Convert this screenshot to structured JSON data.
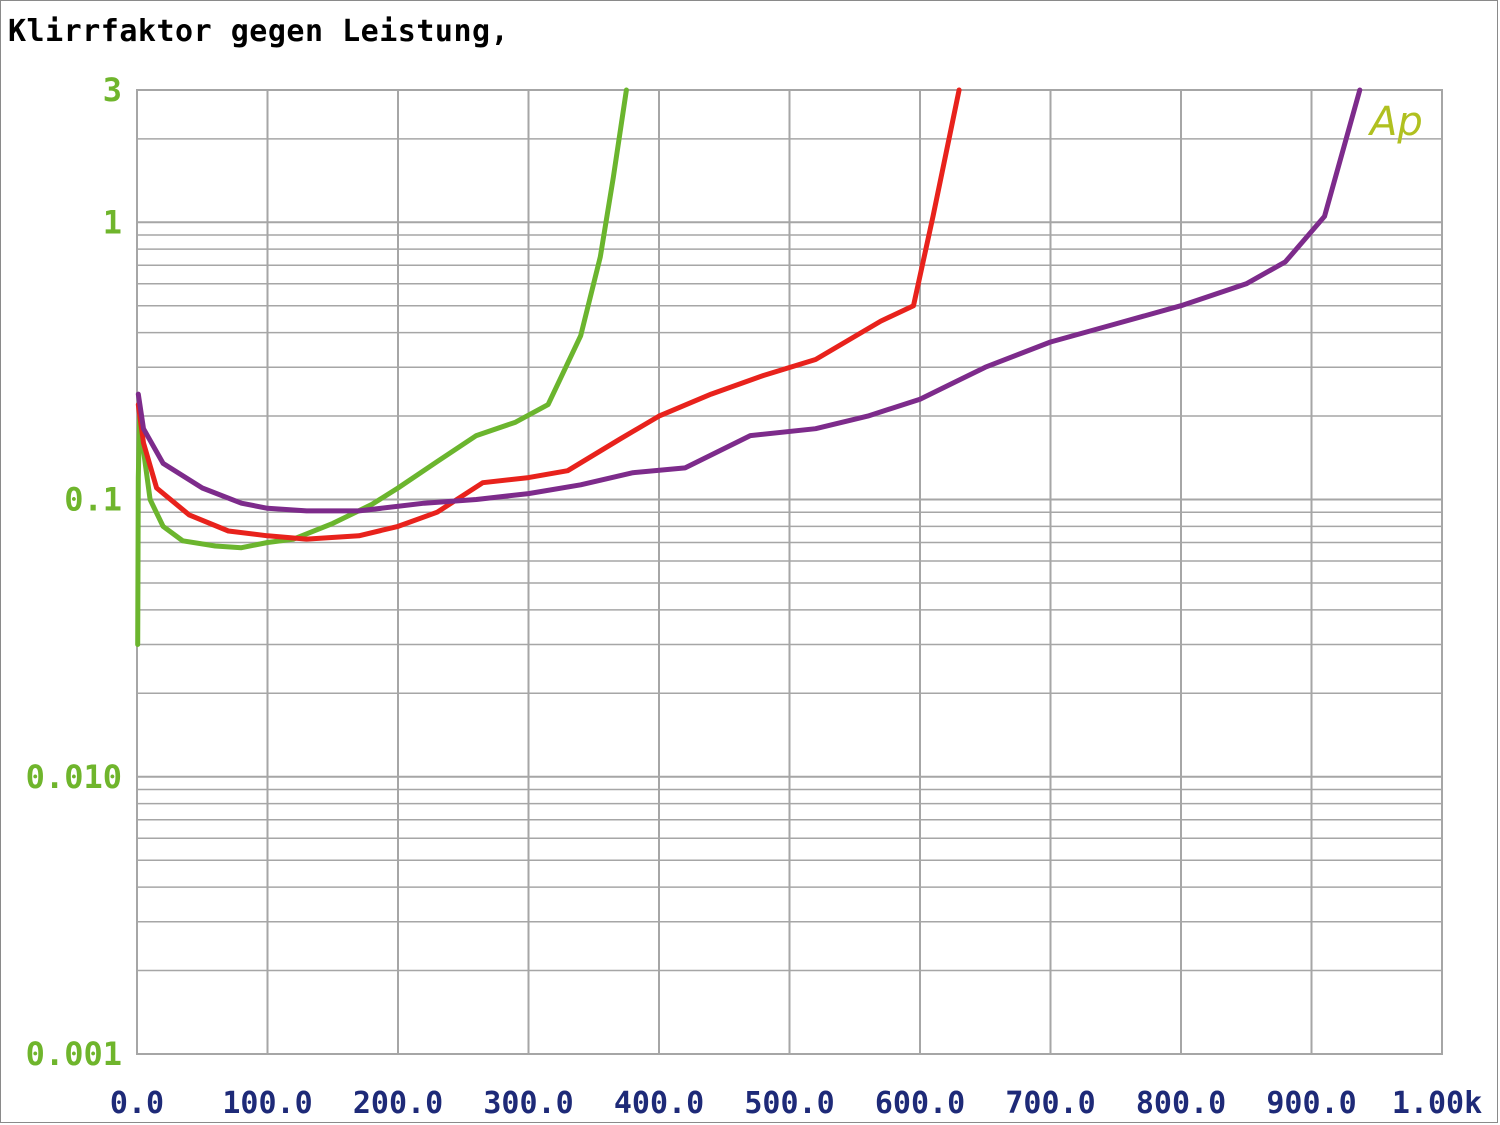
{
  "title": "Klirrfaktor gegen Leistung,",
  "watermark": "Ap",
  "colors": {
    "grid": "#a6a6a6",
    "ytick": "#6fb52c",
    "xtick": "#1e2a78",
    "watermark": "#b0c020"
  },
  "chart_data": {
    "type": "line",
    "title": "Klirrfaktor gegen Leistung,",
    "xlabel": "",
    "ylabel": "",
    "xlim": [
      0,
      1000
    ],
    "ylim": [
      0.001,
      3
    ],
    "yscale": "log",
    "grid": true,
    "xticks": [
      0,
      100,
      200,
      300,
      400,
      500,
      600,
      700,
      800,
      900,
      1000
    ],
    "xtick_labels": [
      "0.0",
      "100.0",
      "200.0",
      "300.0",
      "400.0",
      "500.0",
      "600.0",
      "700.0",
      "800.0",
      "900.0",
      "1.00k"
    ],
    "yticks": [
      0.001,
      0.01,
      0.1,
      1,
      3
    ],
    "ytick_labels": [
      "0.001",
      "0.010",
      "0.1",
      "1",
      "3"
    ],
    "series": [
      {
        "color": "#6bb52e",
        "points": [
          [
            0.5,
            0.03
          ],
          [
            1,
            0.12
          ],
          [
            2,
            0.2
          ],
          [
            5,
            0.15
          ],
          [
            10,
            0.1
          ],
          [
            20,
            0.08
          ],
          [
            35,
            0.071
          ],
          [
            60,
            0.068
          ],
          [
            80,
            0.067
          ],
          [
            100,
            0.07
          ],
          [
            120,
            0.072
          ],
          [
            150,
            0.082
          ],
          [
            180,
            0.096
          ],
          [
            200,
            0.11
          ],
          [
            230,
            0.137
          ],
          [
            260,
            0.17
          ],
          [
            290,
            0.19
          ],
          [
            315,
            0.22
          ],
          [
            340,
            0.39
          ],
          [
            355,
            0.75
          ],
          [
            365,
            1.45
          ],
          [
            375,
            3.0
          ]
        ]
      },
      {
        "color": "#e8221c",
        "points": [
          [
            1,
            0.22
          ],
          [
            5,
            0.16
          ],
          [
            15,
            0.11
          ],
          [
            40,
            0.088
          ],
          [
            70,
            0.077
          ],
          [
            100,
            0.074
          ],
          [
            130,
            0.072
          ],
          [
            170,
            0.074
          ],
          [
            200,
            0.08
          ],
          [
            230,
            0.09
          ],
          [
            265,
            0.115
          ],
          [
            300,
            0.12
          ],
          [
            330,
            0.127
          ],
          [
            370,
            0.165
          ],
          [
            400,
            0.2
          ],
          [
            440,
            0.24
          ],
          [
            480,
            0.28
          ],
          [
            520,
            0.32
          ],
          [
            570,
            0.44
          ],
          [
            595,
            0.5
          ],
          [
            610,
            1.05
          ],
          [
            630,
            3.0
          ]
        ]
      },
      {
        "color": "#7d2b8b",
        "points": [
          [
            1,
            0.24
          ],
          [
            5,
            0.18
          ],
          [
            20,
            0.135
          ],
          [
            50,
            0.11
          ],
          [
            80,
            0.097
          ],
          [
            100,
            0.093
          ],
          [
            130,
            0.091
          ],
          [
            170,
            0.091
          ],
          [
            220,
            0.097
          ],
          [
            260,
            0.1
          ],
          [
            300,
            0.105
          ],
          [
            340,
            0.113
          ],
          [
            380,
            0.125
          ],
          [
            420,
            0.13
          ],
          [
            470,
            0.17
          ],
          [
            520,
            0.18
          ],
          [
            560,
            0.2
          ],
          [
            600,
            0.23
          ],
          [
            650,
            0.3
          ],
          [
            700,
            0.37
          ],
          [
            750,
            0.43
          ],
          [
            800,
            0.5
          ],
          [
            850,
            0.6
          ],
          [
            880,
            0.72
          ],
          [
            910,
            1.05
          ],
          [
            937,
            3.0
          ]
        ]
      }
    ]
  }
}
